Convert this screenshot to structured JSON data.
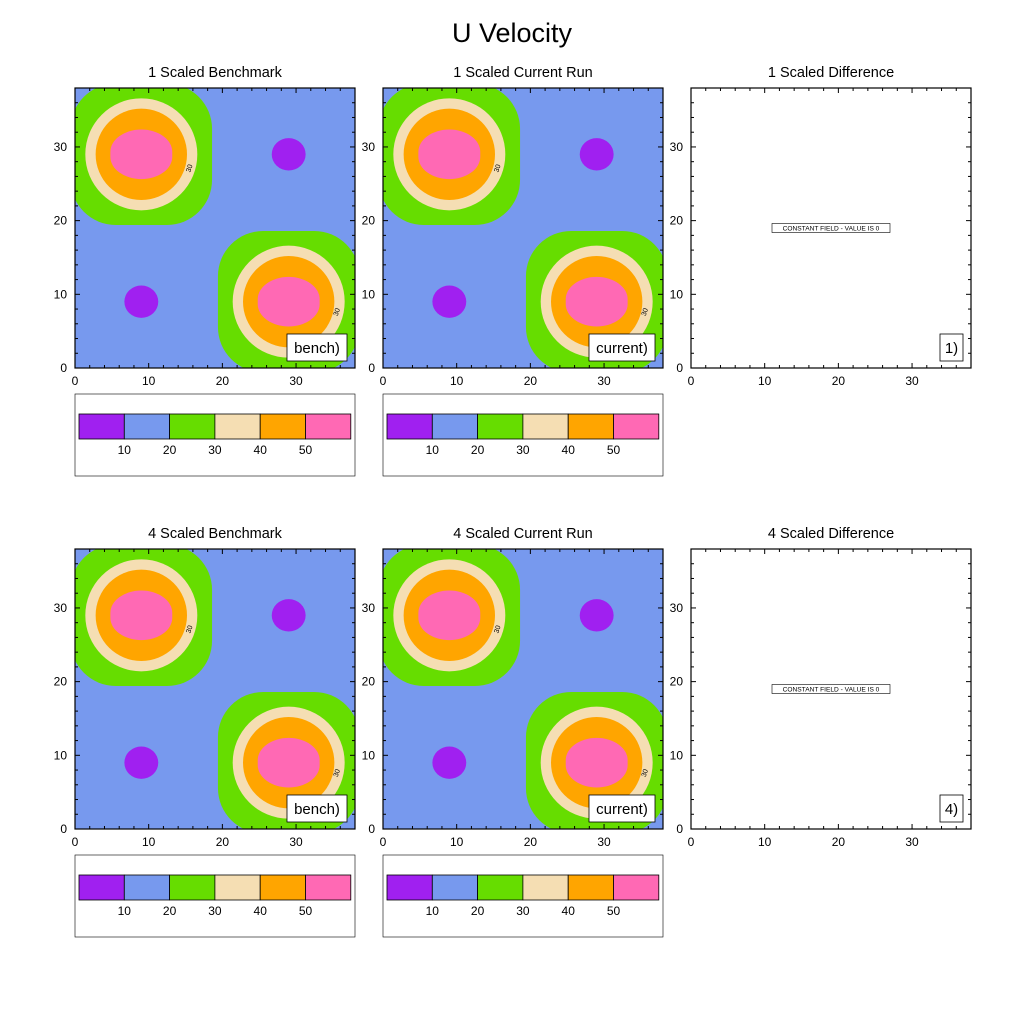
{
  "title": "U Velocity",
  "colors": {
    "levels": [
      "#a020f0",
      "#7799ee",
      "#66dd00",
      "#f5deb3",
      "#ffa500",
      "#ff69b4"
    ],
    "axis": "#000000"
  },
  "chart_data": [
    {
      "type": "heatmap",
      "panel": "1-bench",
      "title": "1 Scaled Benchmark",
      "label": "bench)",
      "contour_label": "30",
      "xlim": [
        0,
        38
      ],
      "ylim": [
        0,
        38
      ],
      "xticks": [
        0,
        10,
        20,
        30
      ],
      "yticks": [
        0,
        10,
        20,
        30
      ],
      "levels": [
        10,
        20,
        30,
        40,
        50
      ],
      "colorbar": {
        "labels": [
          "10",
          "20",
          "30",
          "40",
          "50"
        ]
      }
    },
    {
      "type": "heatmap",
      "panel": "1-current",
      "title": "1 Scaled Current Run",
      "label": "current)",
      "contour_label": "30",
      "xlim": [
        0,
        38
      ],
      "ylim": [
        0,
        38
      ],
      "xticks": [
        0,
        10,
        20,
        30
      ],
      "yticks": [
        0,
        10,
        20,
        30
      ],
      "levels": [
        10,
        20,
        30,
        40,
        50
      ],
      "colorbar": {
        "labels": [
          "10",
          "20",
          "30",
          "40",
          "50"
        ]
      }
    },
    {
      "type": "heatmap",
      "panel": "1-diff",
      "title": "1 Scaled Difference",
      "label": "1)",
      "constant_text": "CONSTANT FIELD - VALUE IS 0",
      "xlim": [
        0,
        38
      ],
      "ylim": [
        0,
        38
      ],
      "xticks": [
        0,
        10,
        20,
        30
      ],
      "yticks": [
        0,
        10,
        20,
        30
      ]
    },
    {
      "type": "heatmap",
      "panel": "4-bench",
      "title": "4 Scaled Benchmark",
      "label": "bench)",
      "contour_label": "30",
      "xlim": [
        0,
        38
      ],
      "ylim": [
        0,
        38
      ],
      "xticks": [
        0,
        10,
        20,
        30
      ],
      "yticks": [
        0,
        10,
        20,
        30
      ],
      "levels": [
        10,
        20,
        30,
        40,
        50
      ],
      "colorbar": {
        "labels": [
          "10",
          "20",
          "30",
          "40",
          "50"
        ]
      }
    },
    {
      "type": "heatmap",
      "panel": "4-current",
      "title": "4 Scaled Current Run",
      "label": "current)",
      "contour_label": "30",
      "xlim": [
        0,
        38
      ],
      "ylim": [
        0,
        38
      ],
      "xticks": [
        0,
        10,
        20,
        30
      ],
      "yticks": [
        0,
        10,
        20,
        30
      ],
      "levels": [
        10,
        20,
        30,
        40,
        50
      ],
      "colorbar": {
        "labels": [
          "10",
          "20",
          "30",
          "40",
          "50"
        ]
      }
    },
    {
      "type": "heatmap",
      "panel": "4-diff",
      "title": "4 Scaled Difference",
      "label": "4)",
      "constant_text": "CONSTANT FIELD - VALUE IS 0",
      "xlim": [
        0,
        38
      ],
      "ylim": [
        0,
        38
      ],
      "xticks": [
        0,
        10,
        20,
        30
      ],
      "yticks": [
        0,
        10,
        20,
        30
      ]
    }
  ]
}
